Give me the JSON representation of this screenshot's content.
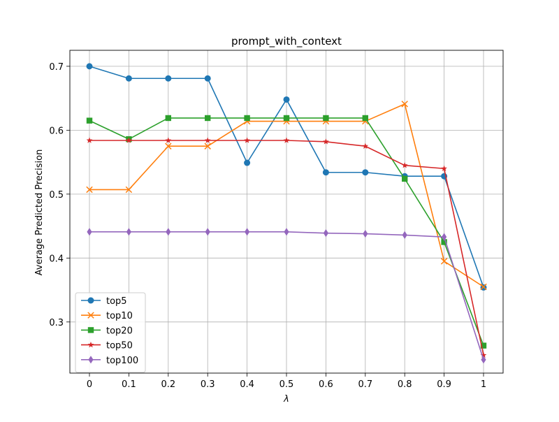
{
  "chart_data": {
    "type": "line",
    "title": "prompt_with_context",
    "xlabel": "λ",
    "ylabel": "Average Predicted Precision",
    "categories": [
      "0",
      "0.1",
      "0.2",
      "0.3",
      "0.4",
      "0.5",
      "0.6",
      "0.7",
      "0.8",
      "0.9",
      "1"
    ],
    "ylim": [
      0.22,
      0.725
    ],
    "yticks": [
      0.3,
      0.4,
      0.5,
      0.6,
      0.7
    ],
    "ytick_labels": [
      "0.3",
      "0.4",
      "0.5",
      "0.6",
      "0.7"
    ],
    "grid": true,
    "legend_position": "lower-left",
    "series": [
      {
        "name": "top5",
        "color": "#1f77b4",
        "marker": "circle",
        "values": [
          0.7,
          0.681,
          0.681,
          0.681,
          0.549,
          0.648,
          0.534,
          0.534,
          0.528,
          0.528,
          0.354
        ]
      },
      {
        "name": "top10",
        "color": "#ff7f0e",
        "marker": "x",
        "values": [
          0.507,
          0.507,
          0.575,
          0.575,
          0.614,
          0.614,
          0.614,
          0.614,
          0.641,
          0.395,
          0.355
        ]
      },
      {
        "name": "top20",
        "color": "#2ca02c",
        "marker": "square",
        "values": [
          0.615,
          0.586,
          0.619,
          0.619,
          0.619,
          0.619,
          0.619,
          0.619,
          0.524,
          0.425,
          0.263
        ]
      },
      {
        "name": "top50",
        "color": "#d62728",
        "marker": "star",
        "values": [
          0.584,
          0.584,
          0.584,
          0.584,
          0.584,
          0.584,
          0.582,
          0.575,
          0.545,
          0.54,
          0.248
        ]
      },
      {
        "name": "top100",
        "color": "#9467bd",
        "marker": "diamond",
        "values": [
          0.441,
          0.441,
          0.441,
          0.441,
          0.441,
          0.441,
          0.439,
          0.438,
          0.436,
          0.433,
          0.241
        ]
      }
    ]
  }
}
